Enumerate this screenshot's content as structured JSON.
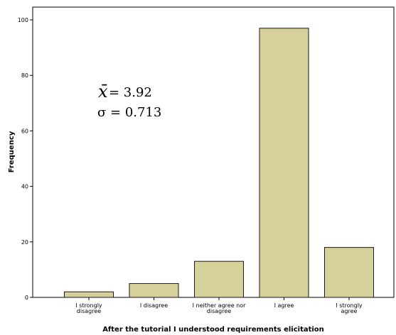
{
  "chart_data": {
    "type": "bar",
    "categories": [
      [
        "I strongly",
        "disagree"
      ],
      [
        "I disagree"
      ],
      [
        "I neither agree nor",
        "disagree"
      ],
      [
        "I agree"
      ],
      [
        "I strongly",
        "agree"
      ]
    ],
    "values": [
      2,
      5,
      13,
      97,
      18
    ],
    "xlabel": "After the tutorial I understood requirements elicitation",
    "ylabel": "Frequency",
    "ylim": [
      0,
      100
    ],
    "yticks": [
      0,
      20,
      40,
      60,
      80,
      100
    ],
    "grid": false,
    "colors": {
      "bar_fill": "#D6D09A",
      "bar_stroke": "#1a1a1a",
      "background": "#FFFFFF",
      "axis": "#000000"
    },
    "annotation": {
      "mean_symbol": "x̄",
      "mean_text": " = 3.92",
      "sd_text": "σ = 0.713"
    }
  }
}
